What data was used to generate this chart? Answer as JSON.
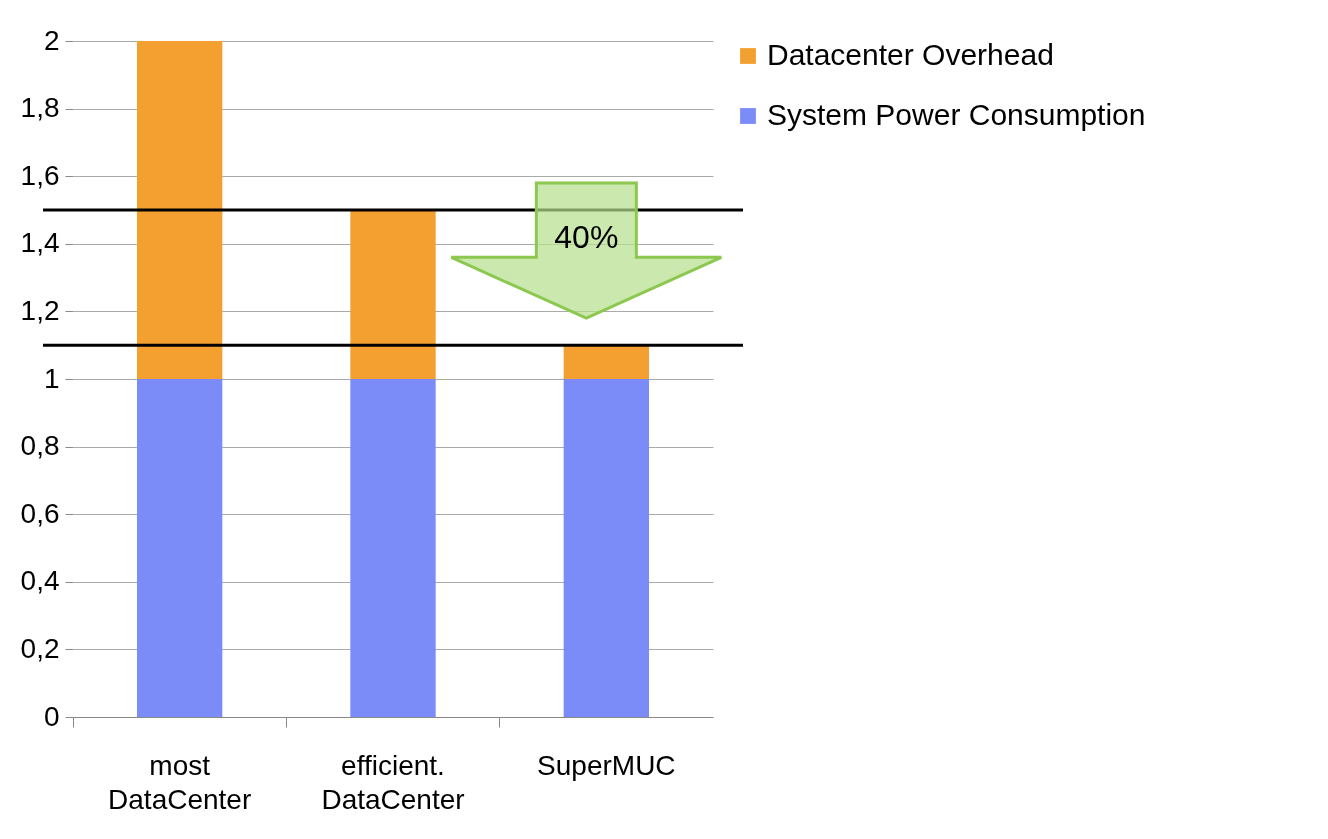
{
  "chart_data": {
    "type": "bar",
    "stacked": true,
    "categories": [
      "most DataCenter",
      "efficient. DataCenter",
      "SuperMUC"
    ],
    "series": [
      {
        "name": "System Power Consumption",
        "color": "#7b8cf8",
        "values": [
          1,
          1,
          1
        ]
      },
      {
        "name": "Datacenter Overhead",
        "color": "#f4a030",
        "values": [
          1,
          0.5,
          0.1
        ]
      }
    ],
    "ylim": [
      0,
      2
    ],
    "yticks": [
      0,
      {
        "value": 0.2,
        "label": "0,2"
      },
      {
        "value": 0.4,
        "label": "0,4"
      },
      {
        "value": 0.6,
        "label": "0,6"
      },
      {
        "value": 0.8,
        "label": "0,8"
      },
      1,
      {
        "value": 1.2,
        "label": "1,2"
      },
      {
        "value": 1.4,
        "label": "1,4"
      },
      {
        "value": 1.6,
        "label": "1,6"
      },
      {
        "value": 1.8,
        "label": "1,8"
      },
      2
    ],
    "grid": "y",
    "legend": "top right",
    "ref_lines": [
      {
        "axis": "y",
        "value": 1.5,
        "color": "#000000"
      },
      {
        "axis": "y",
        "value": 1.1,
        "color": "#000000"
      }
    ],
    "annotations": [
      "40%"
    ]
  }
}
